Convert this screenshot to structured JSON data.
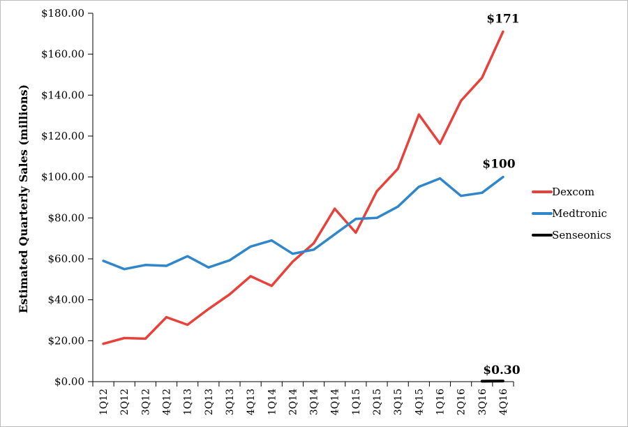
{
  "chart_data": {
    "type": "line",
    "title": "",
    "xlabel": "",
    "ylabel": "Estimated Quarterly Sales (millions)",
    "ylim": [
      0,
      180
    ],
    "ytick_values": [
      0,
      20,
      40,
      60,
      80,
      100,
      120,
      140,
      160,
      180
    ],
    "ytick_labels": [
      "$0.00",
      "$20.00",
      "$40.00",
      "$60.00",
      "$80.00",
      "$100.00",
      "$120.00",
      "$140.00",
      "$160.00",
      "$180.00"
    ],
    "categories": [
      "1Q12",
      "2Q12",
      "3Q12",
      "4Q12",
      "1Q13",
      "2Q13",
      "3Q13",
      "4Q13",
      "1Q14",
      "2Q14",
      "3Q14",
      "4Q14",
      "1Q15",
      "2Q15",
      "3Q15",
      "4Q15",
      "1Q16",
      "2Q16",
      "3Q16",
      "4Q16"
    ],
    "grid": false,
    "legend_position": "right",
    "series": [
      {
        "name": "Dexcom",
        "color": "#e8413a",
        "values": [
          18.5,
          21.3,
          21.0,
          31.5,
          27.8,
          35.5,
          42.6,
          51.5,
          46.8,
          58.6,
          67.6,
          84.5,
          72.8,
          93.0,
          104.0,
          130.5,
          116.3,
          137.2,
          148.5,
          171
        ]
      },
      {
        "name": "Medtronic",
        "color": "#2f86cb",
        "values": [
          59.0,
          55.0,
          57.0,
          56.6,
          61.3,
          55.8,
          59.3,
          66.0,
          69.0,
          62.5,
          64.5,
          72.0,
          79.5,
          80.0,
          85.5,
          95.2,
          99.3,
          90.8,
          92.3,
          100
        ]
      },
      {
        "name": "Senseonics",
        "color": "#000000",
        "values": [
          null,
          null,
          null,
          null,
          null,
          null,
          null,
          null,
          null,
          null,
          null,
          null,
          null,
          null,
          null,
          null,
          null,
          null,
          0.2,
          0.3
        ]
      }
    ],
    "annotations": [
      {
        "text": "$171",
        "series": "Dexcom",
        "category": "4Q16",
        "value": 171
      },
      {
        "text": "$100",
        "series": "Medtronic",
        "category": "4Q16",
        "value": 100
      },
      {
        "text": "$0.30",
        "series": "Senseonics",
        "category": "4Q16",
        "value": 0.3
      }
    ]
  }
}
